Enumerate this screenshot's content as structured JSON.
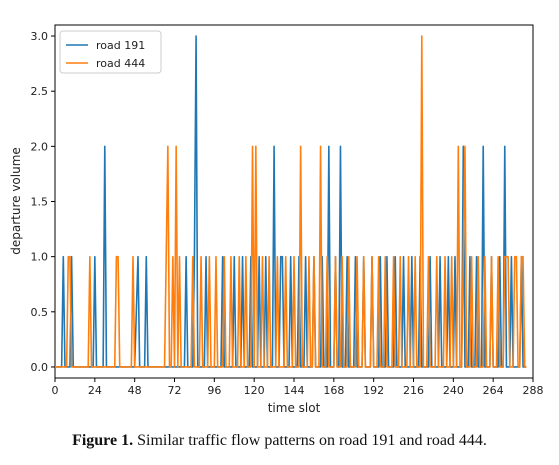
{
  "chart_data": {
    "type": "line",
    "xlabel": "time slot",
    "ylabel": "departure volume",
    "xlim": [
      0,
      288
    ],
    "ylim": [
      -0.1,
      3.1
    ],
    "xticks": [
      0,
      24,
      48,
      72,
      96,
      120,
      144,
      168,
      192,
      216,
      240,
      264,
      288
    ],
    "yticks": [
      "0.0",
      "0.5",
      "1.0",
      "1.5",
      "2.0",
      "2.5",
      "3.0"
    ],
    "grid": false,
    "legend_position": "top-left",
    "series": [
      {
        "name": "road 191",
        "color": "#1f77b4",
        "points": [
          [
            0,
            0
          ],
          [
            4,
            0
          ],
          [
            5,
            1
          ],
          [
            6,
            0
          ],
          [
            9,
            0
          ],
          [
            10,
            1
          ],
          [
            11,
            0
          ],
          [
            23,
            0
          ],
          [
            24,
            1
          ],
          [
            25,
            0
          ],
          [
            29,
            0
          ],
          [
            30,
            2
          ],
          [
            31,
            0
          ],
          [
            48,
            0
          ],
          [
            50,
            1
          ],
          [
            51,
            0
          ],
          [
            54,
            0
          ],
          [
            55,
            1
          ],
          [
            56,
            0
          ],
          [
            78,
            0
          ],
          [
            79,
            1
          ],
          [
            80,
            0
          ],
          [
            83,
            0
          ],
          [
            84,
            1
          ],
          [
            85,
            3
          ],
          [
            86,
            0
          ],
          [
            90,
            0
          ],
          [
            91,
            1
          ],
          [
            92,
            0
          ],
          [
            100,
            0
          ],
          [
            101,
            1
          ],
          [
            102,
            0
          ],
          [
            107,
            0
          ],
          [
            108,
            1
          ],
          [
            109,
            0
          ],
          [
            112,
            0
          ],
          [
            113,
            1
          ],
          [
            114,
            0
          ],
          [
            117,
            0
          ],
          [
            118,
            1
          ],
          [
            119,
            0
          ],
          [
            122,
            0
          ],
          [
            123,
            1
          ],
          [
            124,
            0
          ],
          [
            126,
            0
          ],
          [
            127,
            1
          ],
          [
            128,
            0
          ],
          [
            131,
            0
          ],
          [
            132,
            2
          ],
          [
            133,
            0
          ],
          [
            135,
            0
          ],
          [
            136,
            1
          ],
          [
            137,
            1
          ],
          [
            138,
            0
          ],
          [
            141,
            0
          ],
          [
            142,
            1
          ],
          [
            143,
            0
          ],
          [
            146,
            0
          ],
          [
            147,
            1
          ],
          [
            148,
            0
          ],
          [
            150,
            0
          ],
          [
            151,
            1
          ],
          [
            152,
            0
          ],
          [
            155,
            0
          ],
          [
            156,
            1
          ],
          [
            157,
            0
          ],
          [
            160,
            0
          ],
          [
            161,
            1
          ],
          [
            162,
            0
          ],
          [
            164,
            0
          ],
          [
            165,
            2
          ],
          [
            166,
            0
          ],
          [
            168,
            0
          ],
          [
            169,
            1
          ],
          [
            170,
            0
          ],
          [
            171,
            0
          ],
          [
            172,
            2
          ],
          [
            173,
            0
          ],
          [
            175,
            0
          ],
          [
            176,
            1
          ],
          [
            177,
            0
          ],
          [
            180,
            0
          ],
          [
            181,
            1
          ],
          [
            182,
            0
          ],
          [
            185,
            0
          ],
          [
            186,
            1
          ],
          [
            187,
            0
          ],
          [
            190,
            0
          ],
          [
            191,
            1
          ],
          [
            192,
            0
          ],
          [
            195,
            0
          ],
          [
            196,
            1
          ],
          [
            197,
            0
          ],
          [
            199,
            0
          ],
          [
            200,
            1
          ],
          [
            201,
            0
          ],
          [
            204,
            0
          ],
          [
            205,
            1
          ],
          [
            206,
            0
          ],
          [
            209,
            0
          ],
          [
            210,
            1
          ],
          [
            211,
            0
          ],
          [
            214,
            0
          ],
          [
            215,
            1
          ],
          [
            216,
            0
          ],
          [
            219,
            0
          ],
          [
            220,
            1
          ],
          [
            221,
            0
          ],
          [
            225,
            0
          ],
          [
            226,
            1
          ],
          [
            227,
            0
          ],
          [
            231,
            0
          ],
          [
            232,
            1
          ],
          [
            233,
            0
          ],
          [
            236,
            0
          ],
          [
            237,
            1
          ],
          [
            238,
            0
          ],
          [
            240,
            0
          ],
          [
            241,
            1
          ],
          [
            242,
            0
          ],
          [
            245,
            0
          ],
          [
            246,
            2
          ],
          [
            247,
            0
          ],
          [
            249,
            0
          ],
          [
            250,
            1
          ],
          [
            251,
            0
          ],
          [
            253,
            0
          ],
          [
            254,
            1
          ],
          [
            255,
            0
          ],
          [
            257,
            0
          ],
          [
            258,
            2
          ],
          [
            259,
            0
          ],
          [
            262,
            0
          ],
          [
            263,
            1
          ],
          [
            264,
            0
          ],
          [
            267,
            0
          ],
          [
            268,
            1
          ],
          [
            269,
            0
          ],
          [
            270,
            0
          ],
          [
            271,
            2
          ],
          [
            272,
            0
          ],
          [
            274,
            0
          ],
          [
            275,
            1
          ],
          [
            276,
            0
          ],
          [
            280,
            0
          ],
          [
            281,
            1
          ],
          [
            282,
            0
          ],
          [
            284,
            0
          ]
        ]
      },
      {
        "name": "road 444",
        "color": "#ff7f0e",
        "points": [
          [
            0,
            0
          ],
          [
            7,
            0
          ],
          [
            8,
            1
          ],
          [
            9,
            1
          ],
          [
            10,
            0
          ],
          [
            20,
            0
          ],
          [
            21,
            1
          ],
          [
            22,
            0
          ],
          [
            36,
            0
          ],
          [
            37,
            1
          ],
          [
            38,
            1
          ],
          [
            39,
            0
          ],
          [
            40,
            0
          ],
          [
            46,
            0
          ],
          [
            47,
            1
          ],
          [
            48,
            0
          ],
          [
            66,
            0
          ],
          [
            67,
            1
          ],
          [
            68,
            2
          ],
          [
            69,
            0
          ],
          [
            70,
            0
          ],
          [
            71,
            1
          ],
          [
            72,
            0
          ],
          [
            73,
            2
          ],
          [
            74,
            0
          ],
          [
            75,
            1
          ],
          [
            76,
            0
          ],
          [
            82,
            0
          ],
          [
            83,
            1
          ],
          [
            84,
            0
          ],
          [
            87,
            0
          ],
          [
            88,
            1
          ],
          [
            89,
            0
          ],
          [
            92,
            0
          ],
          [
            93,
            1
          ],
          [
            94,
            0
          ],
          [
            96,
            0
          ],
          [
            97,
            1
          ],
          [
            98,
            0
          ],
          [
            101,
            0
          ],
          [
            102,
            1
          ],
          [
            103,
            0
          ],
          [
            105,
            0
          ],
          [
            106,
            1
          ],
          [
            107,
            0
          ],
          [
            110,
            0
          ],
          [
            111,
            1
          ],
          [
            112,
            0
          ],
          [
            114,
            0
          ],
          [
            115,
            1
          ],
          [
            116,
            0
          ],
          [
            118,
            0
          ],
          [
            119,
            2
          ],
          [
            120,
            0
          ],
          [
            121,
            2
          ],
          [
            122,
            0
          ],
          [
            124,
            0
          ],
          [
            125,
            1
          ],
          [
            126,
            0
          ],
          [
            128,
            0
          ],
          [
            129,
            1
          ],
          [
            130,
            0
          ],
          [
            133,
            0
          ],
          [
            134,
            1
          ],
          [
            135,
            0
          ],
          [
            138,
            0
          ],
          [
            139,
            1
          ],
          [
            140,
            0
          ],
          [
            143,
            0
          ],
          [
            144,
            1
          ],
          [
            145,
            0
          ],
          [
            147,
            0
          ],
          [
            148,
            2
          ],
          [
            149,
            0
          ],
          [
            152,
            0
          ],
          [
            153,
            1
          ],
          [
            154,
            0
          ],
          [
            155,
            0
          ],
          [
            156,
            1
          ],
          [
            157,
            0
          ],
          [
            159,
            0
          ],
          [
            160,
            2
          ],
          [
            161,
            0
          ],
          [
            163,
            0
          ],
          [
            164,
            1
          ],
          [
            165,
            0
          ],
          [
            168,
            0
          ],
          [
            169,
            1
          ],
          [
            170,
            0
          ],
          [
            172,
            0
          ],
          [
            173,
            1
          ],
          [
            174,
            0
          ],
          [
            176,
            0
          ],
          [
            177,
            1
          ],
          [
            178,
            0
          ],
          [
            181,
            0
          ],
          [
            182,
            1
          ],
          [
            183,
            0
          ],
          [
            185,
            0
          ],
          [
            186,
            1
          ],
          [
            187,
            0
          ],
          [
            190,
            0
          ],
          [
            191,
            1
          ],
          [
            192,
            0
          ],
          [
            194,
            0
          ],
          [
            195,
            1
          ],
          [
            196,
            0
          ],
          [
            198,
            0
          ],
          [
            199,
            1
          ],
          [
            200,
            0
          ],
          [
            203,
            0
          ],
          [
            204,
            1
          ],
          [
            205,
            0
          ],
          [
            207,
            0
          ],
          [
            208,
            1
          ],
          [
            209,
            0
          ],
          [
            212,
            0
          ],
          [
            213,
            1
          ],
          [
            214,
            0
          ],
          [
            216,
            0
          ],
          [
            217,
            1
          ],
          [
            218,
            0
          ],
          [
            220,
            0
          ],
          [
            221,
            3
          ],
          [
            222,
            0
          ],
          [
            224,
            0
          ],
          [
            225,
            1
          ],
          [
            226,
            0
          ],
          [
            229,
            0
          ],
          [
            230,
            1
          ],
          [
            231,
            0
          ],
          [
            234,
            0
          ],
          [
            235,
            1
          ],
          [
            236,
            0
          ],
          [
            238,
            0
          ],
          [
            239,
            1
          ],
          [
            240,
            0
          ],
          [
            242,
            0
          ],
          [
            243,
            2
          ],
          [
            244,
            0
          ],
          [
            245,
            0
          ],
          [
            246,
            1
          ],
          [
            247,
            2
          ],
          [
            248,
            0
          ],
          [
            250,
            0
          ],
          [
            251,
            1
          ],
          [
            252,
            0
          ],
          [
            254,
            0
          ],
          [
            255,
            1
          ],
          [
            256,
            0
          ],
          [
            258,
            0
          ],
          [
            259,
            1
          ],
          [
            260,
            0
          ],
          [
            262,
            0
          ],
          [
            263,
            1
          ],
          [
            264,
            0
          ],
          [
            266,
            0
          ],
          [
            267,
            1
          ],
          [
            268,
            0
          ],
          [
            270,
            0
          ],
          [
            271,
            1
          ],
          [
            272,
            1
          ],
          [
            273,
            1
          ],
          [
            274,
            0
          ],
          [
            276,
            0
          ],
          [
            277,
            1
          ],
          [
            278,
            1
          ],
          [
            279,
            0
          ],
          [
            280,
            0
          ],
          [
            281,
            1
          ],
          [
            282,
            1
          ],
          [
            283,
            0
          ],
          [
            284,
            0
          ]
        ]
      }
    ]
  },
  "caption": {
    "label": "Figure 1.",
    "text": " Similar traffic flow patterns on road 191 and road 444."
  }
}
